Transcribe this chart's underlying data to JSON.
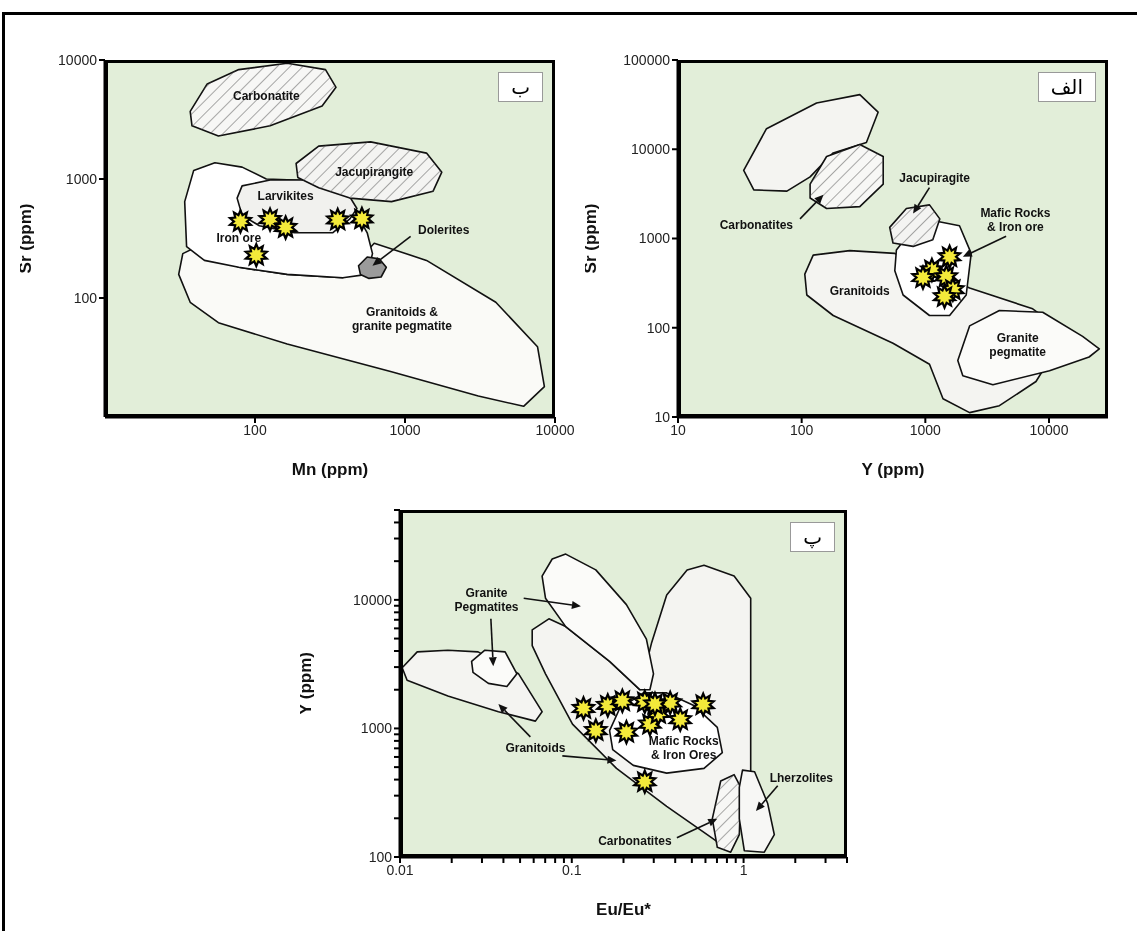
{
  "chart_data": [
    {
      "type": "scatter",
      "title": "ب",
      "xlabel": "Mn (ppm)",
      "ylabel": "Sr (ppm)",
      "log": "xy",
      "xlim": [
        10,
        10000
      ],
      "ylim": [
        10,
        10000
      ],
      "xticks": [
        100,
        1000,
        10000
      ],
      "yticks": [
        100,
        1000,
        10000
      ],
      "marker": "star",
      "series": [
        {
          "color": "#f3e93a",
          "x": [
            80,
            126,
            160,
            356,
            516,
            102
          ],
          "values": [
            440,
            456,
            391,
            453,
            462,
            229
          ]
        }
      ],
      "annotations": [
        "Carbonatite",
        "Jacupirangite",
        "Larvikites",
        "Iron ore",
        "Dolerites",
        "Granitoids &\ngranite pegmatite"
      ]
    },
    {
      "type": "scatter",
      "title": "الف",
      "xlabel": "Y (ppm)",
      "ylabel": "Sr (ppm)",
      "log": "xy",
      "xlim": [
        10,
        30000
      ],
      "ylim": [
        10,
        100000
      ],
      "xticks": [
        10,
        100,
        1000,
        10000
      ],
      "yticks": [
        10,
        100,
        1000,
        10000,
        100000
      ],
      "marker": "star",
      "series": [
        {
          "color": "#f3e93a",
          "x": [
            1570,
            1130,
            1480,
            1670,
            1430,
            957
          ],
          "values": [
            624,
            444,
            372,
            267,
            223,
            365
          ]
        }
      ],
      "annotations": [
        "Carbonatites",
        "Jacupiragite",
        "Mafic Rocks\n& Iron ore",
        "Granitoids",
        "Granite\npegmatite"
      ]
    },
    {
      "type": "scatter",
      "title": "پ",
      "xlabel": "Eu/Eu*",
      "ylabel": "Y (ppm)",
      "log": "xy",
      "xlim": [
        0.01,
        4
      ],
      "ylim": [
        100,
        50000
      ],
      "xticks": [
        0.01,
        {
          "value": 0.02,
          "label": null
        },
        {
          "value": 0.03,
          "label": null
        },
        {
          "value": 0.04,
          "label": null
        },
        {
          "value": 0.05,
          "label": null
        },
        {
          "value": 0.06,
          "label": null
        },
        {
          "value": 0.07,
          "label": null
        },
        {
          "value": 0.08,
          "label": null
        },
        {
          "value": 0.09,
          "label": null
        },
        0.1,
        {
          "value": 0.2,
          "label": null
        },
        {
          "value": 0.3,
          "label": null
        },
        {
          "value": 0.4,
          "label": null
        },
        {
          "value": 0.5,
          "label": null
        },
        {
          "value": 0.6,
          "label": null
        },
        {
          "value": 0.7,
          "label": null
        },
        {
          "value": 0.8,
          "label": null
        },
        {
          "value": 0.9,
          "label": null
        },
        1,
        {
          "value": 2,
          "label": null
        },
        {
          "value": 3,
          "label": null
        },
        {
          "value": 4,
          "label": null
        }
      ],
      "yticks": [
        100,
        {
          "value": 200,
          "label": null
        },
        {
          "value": 300,
          "label": null
        },
        {
          "value": 400,
          "label": null
        },
        {
          "value": 500,
          "label": null
        },
        {
          "value": 600,
          "label": null
        },
        {
          "value": 700,
          "label": null
        },
        {
          "value": 800,
          "label": null
        },
        {
          "value": 900,
          "label": null
        },
        1000,
        {
          "value": 2000,
          "label": null
        },
        {
          "value": 3000,
          "label": null
        },
        {
          "value": 4000,
          "label": null
        },
        {
          "value": 5000,
          "label": null
        },
        {
          "value": 6000,
          "label": null
        },
        {
          "value": 7000,
          "label": null
        },
        {
          "value": 8000,
          "label": null
        },
        {
          "value": 9000,
          "label": null
        },
        10000,
        {
          "value": 20000,
          "label": null
        },
        {
          "value": 30000,
          "label": null
        },
        {
          "value": 40000,
          "label": null
        },
        {
          "value": 50000,
          "label": null
        }
      ],
      "marker": "star",
      "series": [
        {
          "color": "#f3e93a",
          "x": [
            0.117,
            0.138,
            0.162,
            0.197,
            0.208,
            0.266,
            0.285,
            0.319,
            0.374,
            0.428,
            0.582,
            0.266,
            0.305
          ],
          "values": [
            1430,
            961,
            1510,
            1640,
            935,
            1610,
            1080,
            1310,
            1580,
            1170,
            1530,
            385,
            1550
          ]
        }
      ],
      "annotations": [
        "Granite\nPegmatites",
        "Granitoids",
        "Mafic Rocks\n& Iron Ores",
        "Lherzolites",
        "Carbonatites"
      ]
    }
  ]
}
